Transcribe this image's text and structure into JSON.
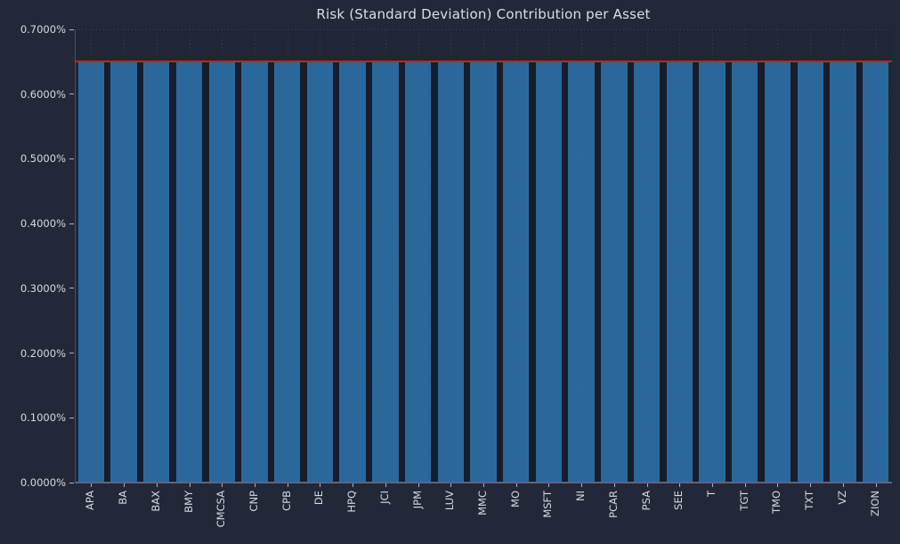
{
  "chart_data": {
    "type": "bar",
    "title": "Risk (Standard Deviation) Contribution per Asset",
    "categories": [
      "APA",
      "BA",
      "BAX",
      "BMY",
      "CMCSA",
      "CNP",
      "CPB",
      "DE",
      "HPQ",
      "JCI",
      "JPM",
      "LUV",
      "MMC",
      "MO",
      "MSFT",
      "NI",
      "PCAR",
      "PSA",
      "SEE",
      "T",
      "TGT",
      "TMO",
      "TXT",
      "VZ",
      "ZION"
    ],
    "values": [
      0.6485,
      0.6485,
      0.6485,
      0.6485,
      0.6485,
      0.6485,
      0.6485,
      0.6485,
      0.6485,
      0.6485,
      0.6485,
      0.6485,
      0.6485,
      0.6485,
      0.6485,
      0.6485,
      0.6485,
      0.6485,
      0.6485,
      0.6485,
      0.6485,
      0.6485,
      0.6485,
      0.6485,
      0.6485
    ],
    "unit": "%",
    "xlabel": "",
    "ylabel": "",
    "ylim": [
      0,
      0.7
    ],
    "yticks": [
      {
        "value": 0.0,
        "label": "0.0000%"
      },
      {
        "value": 0.1,
        "label": "0.1000%"
      },
      {
        "value": 0.2,
        "label": "0.2000%"
      },
      {
        "value": 0.3,
        "label": "0.3000%"
      },
      {
        "value": 0.4,
        "label": "0.4000%"
      },
      {
        "value": 0.5,
        "label": "0.5000%"
      },
      {
        "value": 0.6,
        "label": "0.6000%"
      },
      {
        "value": 0.7,
        "label": "0.7000%"
      }
    ],
    "reference_line": {
      "value": 0.65,
      "color": "#e01717",
      "style": "solid"
    },
    "grid": "dotted",
    "legend": "none",
    "colors": {
      "background": "#232838",
      "plot_background": "#212637",
      "bar_fill": "#2a689c",
      "bar_gap": "#181d2c",
      "grid": "#3e455c",
      "text": "#d6d9e4",
      "reference_line": "#e01717"
    }
  }
}
